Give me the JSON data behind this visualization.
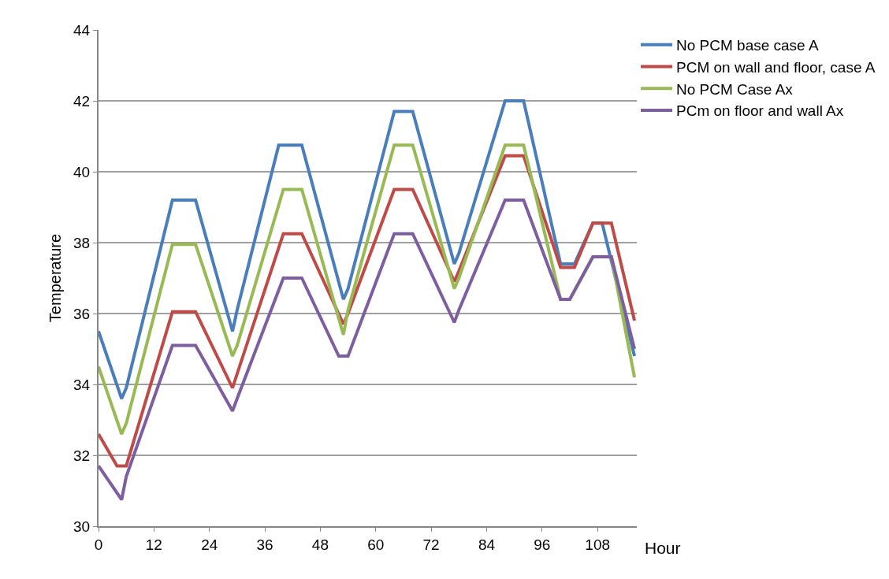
{
  "chart_data": {
    "type": "line",
    "xlabel": "Hour",
    "ylabel": "Temperature",
    "xlim": [
      0,
      116.5
    ],
    "xticks": [
      0,
      12,
      24,
      36,
      48,
      60,
      72,
      84,
      96,
      108
    ],
    "ylim": [
      30,
      44
    ],
    "yticks": [
      30,
      32,
      34,
      36,
      38,
      40,
      42,
      44
    ],
    "grid": "y",
    "legend": "top right",
    "line_style": "solid",
    "series": [
      {
        "name": "No PCM base case A",
        "color": "#4a7ebb",
        "x": [
          0,
          5,
          6,
          16,
          21,
          29,
          30,
          39,
          44,
          53,
          54,
          64,
          68,
          77,
          78,
          88,
          92,
          100,
          103,
          107,
          109,
          116
        ],
        "values": [
          35.5,
          33.6,
          33.9,
          39.2,
          39.2,
          35.5,
          36.1,
          40.75,
          40.75,
          36.4,
          36.7,
          41.7,
          41.7,
          37.4,
          37.7,
          42.0,
          42.0,
          37.4,
          37.4,
          38.55,
          38.55,
          34.8
        ]
      },
      {
        "name": "PCM on wall and floor, case A",
        "color": "#be4b48",
        "x": [
          0,
          4,
          6,
          16,
          21,
          29,
          30,
          40,
          44,
          53,
          54,
          64,
          68,
          77,
          78,
          88,
          92,
          100,
          103,
          107,
          111,
          116
        ],
        "values": [
          32.6,
          31.7,
          31.7,
          36.05,
          36.05,
          33.9,
          34.3,
          38.25,
          38.25,
          35.7,
          36.0,
          39.5,
          39.5,
          36.9,
          37.2,
          40.45,
          40.45,
          37.3,
          37.3,
          38.55,
          38.55,
          35.8
        ]
      },
      {
        "name": "No PCM Case Ax",
        "color": "#98b954",
        "x": [
          0,
          5,
          6,
          16,
          21,
          29,
          30,
          40,
          44,
          53,
          54,
          64,
          68,
          77,
          78,
          88,
          92,
          100,
          102,
          107,
          111,
          116
        ],
        "values": [
          34.5,
          32.6,
          32.9,
          37.95,
          37.95,
          34.8,
          35.1,
          39.5,
          39.5,
          35.4,
          36.1,
          40.75,
          40.75,
          36.7,
          37.0,
          40.75,
          40.75,
          36.4,
          36.4,
          37.6,
          37.6,
          34.2
        ]
      },
      {
        "name": "PCm on floor and wall Ax",
        "color": "#7d5fa0",
        "x": [
          0,
          5,
          6,
          16,
          21,
          29,
          30,
          40,
          44,
          52,
          54,
          64,
          68,
          77,
          78,
          88,
          92,
          100,
          102,
          107,
          111,
          116
        ],
        "values": [
          31.7,
          30.75,
          31.4,
          35.1,
          35.1,
          33.25,
          33.6,
          37.0,
          37.0,
          34.8,
          34.8,
          38.25,
          38.25,
          35.75,
          36.1,
          39.2,
          39.2,
          36.4,
          36.4,
          37.6,
          37.6,
          35.0
        ]
      }
    ]
  }
}
